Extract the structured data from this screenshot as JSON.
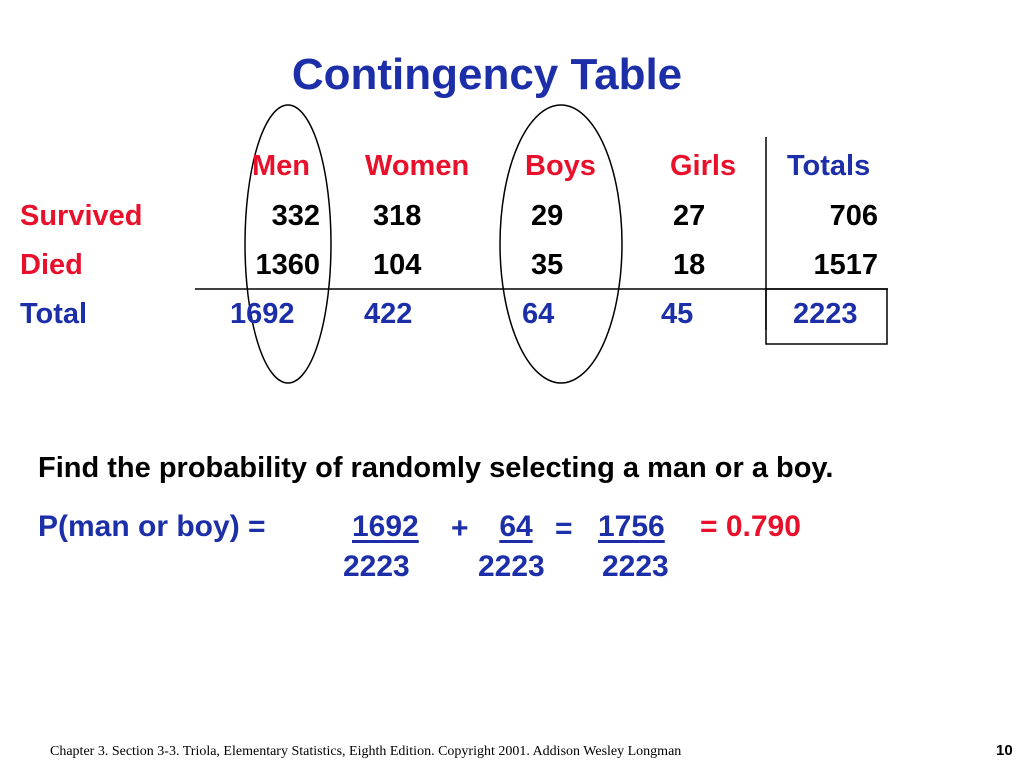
{
  "slide": {
    "title": "Contingency Table"
  },
  "table": {
    "columns": [
      "Men",
      "Women",
      "Boys",
      "Girls",
      "Totals"
    ],
    "rows": [
      {
        "label": "Survived",
        "values": [
          "332",
          "318",
          "29",
          "27",
          "706"
        ]
      },
      {
        "label": "Died",
        "values": [
          "1360",
          "104",
          "35",
          "18",
          "1517"
        ]
      },
      {
        "label": "Total",
        "values": [
          "1692",
          "422",
          "64",
          "45",
          "2223"
        ]
      }
    ]
  },
  "problem": {
    "question": "Find the probability of randomly selecting a man or a boy.",
    "lhs": "P(man or boy) =",
    "frac1_num": "1692",
    "frac1_den": "2223",
    "plus": "+",
    "frac2_num": "64",
    "frac2_den": "2223",
    "equals": "=",
    "frac3_num": "1756",
    "frac3_den": "2223",
    "result": "= 0.790"
  },
  "footer": {
    "citation": "Chapter 3.  Section 3-3.  Triola, Elementary Statistics, Eighth Edition. Copyright  2001.  Addison Wesley Longman",
    "page_number": "10"
  },
  "colors": {
    "title_blue": "#1c2fa8",
    "emphasis_red": "#e8102a"
  }
}
